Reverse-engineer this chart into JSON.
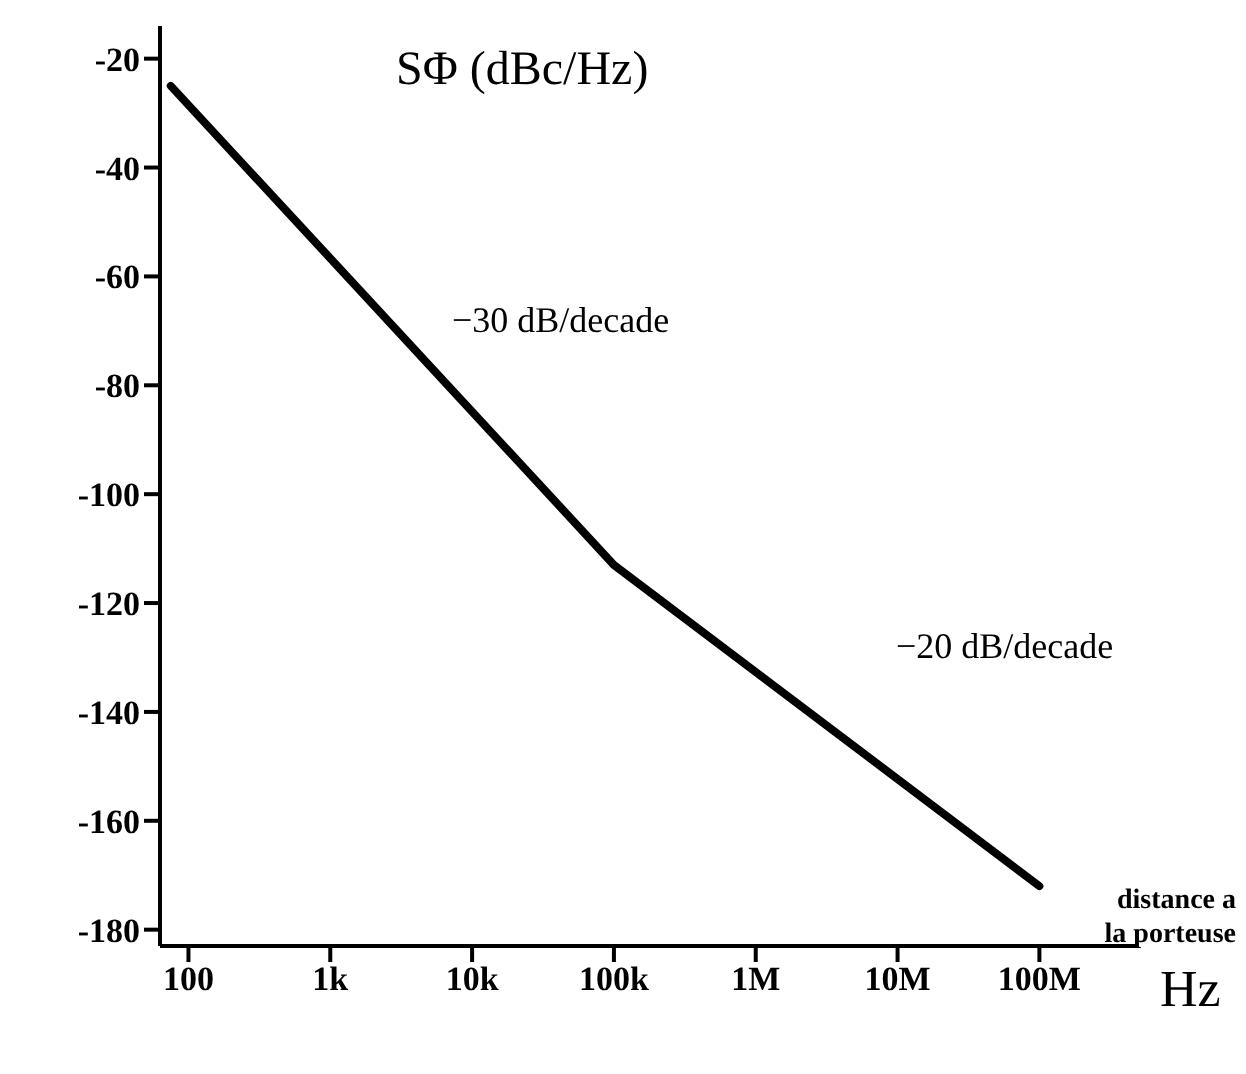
{
  "chart_data": {
    "type": "line",
    "ylabel": "SΦ (dBc/Hz)",
    "xlabel": "Hz",
    "log": "x",
    "x": [
      75,
      100000,
      100000000
    ],
    "series": [
      {
        "color": "#000000",
        "values": [
          -25,
          -113,
          -172
        ]
      }
    ],
    "xlim": [
      63,
      480000000
    ],
    "xticks": [
      {
        "value": 100,
        "label": "100"
      },
      {
        "value": 1000,
        "label": "1k"
      },
      {
        "value": 10000,
        "label": "10k"
      },
      {
        "value": 100000,
        "label": "100k"
      },
      {
        "value": 1000000,
        "label": "1M"
      },
      {
        "value": 10000000,
        "label": "10M"
      },
      {
        "value": 100000000,
        "label": "100M"
      }
    ],
    "ylim": [
      -183,
      -14
    ],
    "yticks": [
      -20,
      -40,
      -60,
      -80,
      -100,
      -120,
      -140,
      -160,
      -180
    ],
    "annotations": [
      "−30 dB/decade",
      "−20 dB/decade",
      "distance a la porteuse"
    ],
    "grid": false,
    "marker": "none",
    "line_style": "solid"
  }
}
